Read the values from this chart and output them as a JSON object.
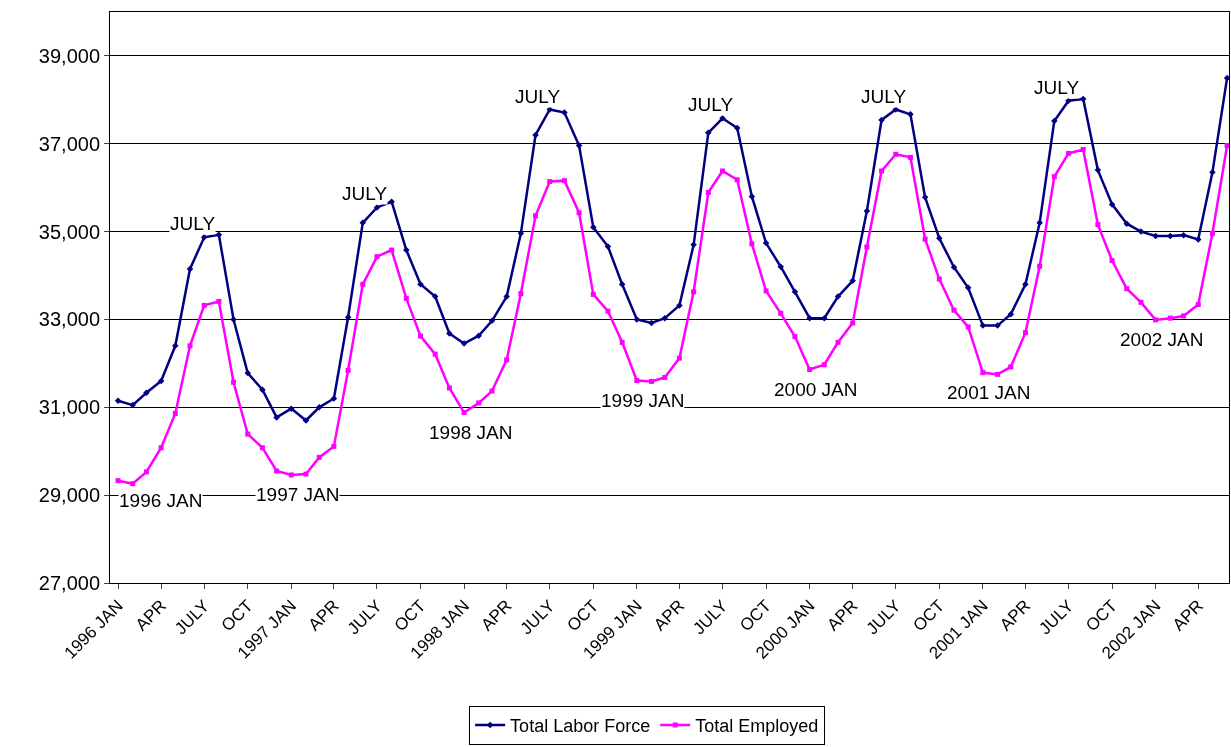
{
  "chart_data": {
    "type": "line",
    "x": [
      "1996-01",
      "1996-02",
      "1996-03",
      "1996-04",
      "1996-05",
      "1996-06",
      "1996-07",
      "1996-08",
      "1996-09",
      "1996-10",
      "1996-11",
      "1996-12",
      "1997-01",
      "1997-02",
      "1997-03",
      "1997-04",
      "1997-05",
      "1997-06",
      "1997-07",
      "1997-08",
      "1997-09",
      "1997-10",
      "1997-11",
      "1997-12",
      "1998-01",
      "1998-02",
      "1998-03",
      "1998-04",
      "1998-05",
      "1998-06",
      "1998-07",
      "1998-08",
      "1998-09",
      "1998-10",
      "1998-11",
      "1998-12",
      "1999-01",
      "1999-02",
      "1999-03",
      "1999-04",
      "1999-05",
      "1999-06",
      "1999-07",
      "1999-08",
      "1999-09",
      "1999-10",
      "1999-11",
      "1999-12",
      "2000-01",
      "2000-02",
      "2000-03",
      "2000-04",
      "2000-05",
      "2000-06",
      "2000-07",
      "2000-08",
      "2000-09",
      "2000-10",
      "2000-11",
      "2000-12",
      "2001-01",
      "2001-02",
      "2001-03",
      "2001-04",
      "2001-05",
      "2001-06",
      "2001-07",
      "2001-08",
      "2001-09",
      "2001-10",
      "2001-11",
      "2001-12",
      "2002-01",
      "2002-02",
      "2002-03",
      "2002-04",
      "2002-05",
      "2002-06"
    ],
    "series": [
      {
        "name": "Total Labor Force",
        "color": "#000080",
        "marker": "diamond",
        "values": [
          31150,
          31050,
          31330,
          31600,
          32400,
          34150,
          34870,
          34930,
          33000,
          31780,
          31400,
          30770,
          30970,
          30700,
          31000,
          31200,
          33050,
          35200,
          35550,
          35680,
          34580,
          33800,
          33520,
          32680,
          32450,
          32630,
          32970,
          33520,
          34960,
          37200,
          37780,
          37710,
          36960,
          35100,
          34660,
          33800,
          33000,
          32920,
          33030,
          33320,
          34700,
          37250,
          37580,
          37360,
          35800,
          34740,
          34200,
          33630,
          33030,
          33030,
          33520,
          33880,
          35470,
          37540,
          37780,
          37670,
          35780,
          34850,
          34190,
          33720,
          32860,
          32860,
          33120,
          33800,
          35200,
          37520,
          37980,
          38020,
          36400,
          35620,
          35180,
          35000,
          34900,
          34900,
          34920,
          34820,
          36350,
          38500
        ]
      },
      {
        "name": "Total Employed",
        "color": "#ff00ff",
        "marker": "square",
        "values": [
          29330,
          29260,
          29530,
          30080,
          30860,
          32400,
          33320,
          33410,
          31570,
          30390,
          30080,
          29550,
          29460,
          29480,
          29860,
          30110,
          31840,
          33800,
          34430,
          34580,
          33480,
          32620,
          32210,
          31440,
          30880,
          31100,
          31370,
          32080,
          33590,
          35360,
          36140,
          36160,
          35430,
          33570,
          33190,
          32480,
          31610,
          31590,
          31680,
          32120,
          33630,
          35890,
          36380,
          36180,
          34720,
          33650,
          33140,
          32610,
          31860,
          31970,
          32480,
          32920,
          34650,
          36380,
          36760,
          36690,
          34830,
          33920,
          33210,
          32830,
          31790,
          31750,
          31920,
          32700,
          34210,
          36250,
          36780,
          36870,
          35160,
          34340,
          33700,
          33390,
          32990,
          33030,
          33080,
          33340,
          34960,
          36960
        ]
      }
    ],
    "xlim": [
      "1995-12-15",
      "2002-06-05"
    ],
    "xticks": [
      {
        "value": "1996-01",
        "label": "1996 JAN"
      },
      {
        "value": "1996-04",
        "label": "APR"
      },
      {
        "value": "1996-07",
        "label": "JULY"
      },
      {
        "value": "1996-10",
        "label": "OCT"
      },
      {
        "value": "1997-01",
        "label": "1997 JAN"
      },
      {
        "value": "1997-04",
        "label": "APR"
      },
      {
        "value": "1997-07",
        "label": "JULY"
      },
      {
        "value": "1997-10",
        "label": "OCT"
      },
      {
        "value": "1998-01",
        "label": "1998 JAN"
      },
      {
        "value": "1998-04",
        "label": "APR"
      },
      {
        "value": "1998-07",
        "label": "JULY"
      },
      {
        "value": "1998-10",
        "label": "OCT"
      },
      {
        "value": "1999-01",
        "label": "1999 JAN"
      },
      {
        "value": "1999-04",
        "label": "APR"
      },
      {
        "value": "1999-07",
        "label": "JULY"
      },
      {
        "value": "1999-10",
        "label": "OCT"
      },
      {
        "value": "2000-01",
        "label": "2000 JAN"
      },
      {
        "value": "2000-04",
        "label": "APR"
      },
      {
        "value": "2000-07",
        "label": "JULY"
      },
      {
        "value": "2000-10",
        "label": "OCT"
      },
      {
        "value": "2001-01",
        "label": "2001 JAN"
      },
      {
        "value": "2001-04",
        "label": "APR"
      },
      {
        "value": "2001-07",
        "label": "JULY"
      },
      {
        "value": "2001-10",
        "label": "OCT"
      },
      {
        "value": "2002-01",
        "label": "2002 JAN"
      },
      {
        "value": "2002-04",
        "label": "APR"
      }
    ],
    "ylim": [
      27000,
      40000
    ],
    "yticks": [
      {
        "value": 27000,
        "label": "27,000"
      },
      {
        "value": 29000,
        "label": "29,000"
      },
      {
        "value": 31000,
        "label": "31,000"
      },
      {
        "value": 33000,
        "label": "33,000"
      },
      {
        "value": 35000,
        "label": "35,000"
      },
      {
        "value": 37000,
        "label": "37,000"
      },
      {
        "value": 39000,
        "label": "39,000"
      }
    ],
    "grid": "y",
    "legend": "bottom",
    "line_style": "solid",
    "annotations": [
      {
        "text": "JULY",
        "x": "1996-07",
        "y": 34870
      },
      {
        "text": "JULY",
        "x": "1997-07",
        "y": 35550
      },
      {
        "text": "JULY",
        "x": "1998-07",
        "y": 37780
      },
      {
        "text": "JULY",
        "x": "1999-07",
        "y": 37580
      },
      {
        "text": "JULY",
        "x": "2000-07",
        "y": 37780
      },
      {
        "text": "JULY",
        "x": "2001-07",
        "y": 37980
      },
      {
        "text": "1996 JAN",
        "x": "1996-01",
        "y": 29330
      },
      {
        "text": "1997 JAN",
        "x": "1997-01",
        "y": 29460
      },
      {
        "text": "1998 JAN",
        "x": "1998-01",
        "y": 30880
      },
      {
        "text": "1999 JAN",
        "x": "1999-01",
        "y": 31610
      },
      {
        "text": "2000 JAN",
        "x": "2000-01",
        "y": 31860
      },
      {
        "text": "2001 JAN",
        "x": "2001-01",
        "y": 31790
      },
      {
        "text": "2002 JAN",
        "x": "2002-01",
        "y": 32990
      }
    ]
  }
}
